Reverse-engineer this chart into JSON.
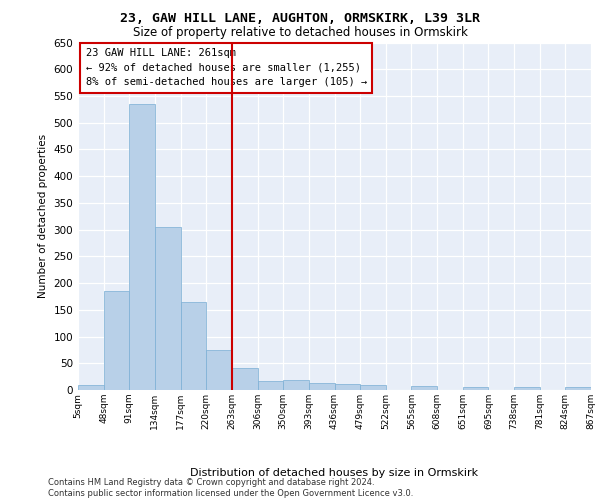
{
  "title1": "23, GAW HILL LANE, AUGHTON, ORMSKIRK, L39 3LR",
  "title2": "Size of property relative to detached houses in Ormskirk",
  "xlabel": "Distribution of detached houses by size in Ormskirk",
  "ylabel": "Number of detached properties",
  "bar_values": [
    10,
    185,
    535,
    305,
    165,
    75,
    42,
    17,
    18,
    13,
    12,
    9,
    0,
    8,
    0,
    5,
    0,
    5,
    0,
    5
  ],
  "bin_labels": [
    "5sqm",
    "48sqm",
    "91sqm",
    "134sqm",
    "177sqm",
    "220sqm",
    "263sqm",
    "306sqm",
    "350sqm",
    "393sqm",
    "436sqm",
    "479sqm",
    "522sqm",
    "565sqm",
    "608sqm",
    "651sqm",
    "695sqm",
    "738sqm",
    "781sqm",
    "824sqm",
    "867sqm"
  ],
  "bar_color": "#b8d0e8",
  "bar_edge_color": "#7aaed4",
  "background_color": "#e8eef8",
  "vline_color": "#cc0000",
  "annotation_text": "23 GAW HILL LANE: 261sqm\n← 92% of detached houses are smaller (1,255)\n8% of semi-detached houses are larger (105) →",
  "annotation_box_color": "#ffffff",
  "annotation_border_color": "#cc0000",
  "footer_text": "Contains HM Land Registry data © Crown copyright and database right 2024.\nContains public sector information licensed under the Open Government Licence v3.0.",
  "ylim": [
    0,
    650
  ],
  "yticks": [
    0,
    50,
    100,
    150,
    200,
    250,
    300,
    350,
    400,
    450,
    500,
    550,
    600,
    650
  ]
}
